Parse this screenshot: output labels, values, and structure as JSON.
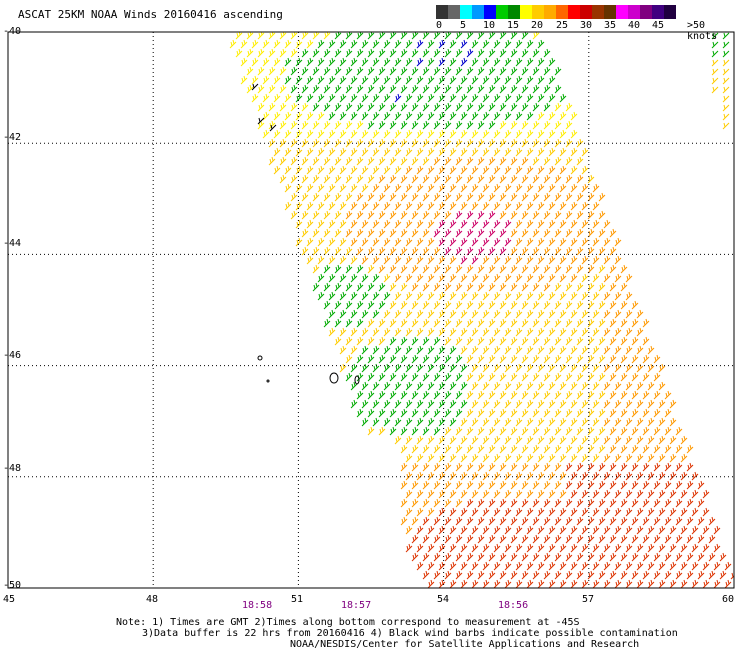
{
  "title": "ASCAT 25KM NOAA Winds 20160416 ascending",
  "legend": {
    "ticks": [
      "0",
      "5",
      "10",
      "15",
      "20",
      "25",
      "30",
      "35",
      "40",
      "45",
      ">50 knots"
    ],
    "colors": [
      "#333333",
      "#666666",
      "#00ffff",
      "#0099ff",
      "#0000ff",
      "#00cc00",
      "#008800",
      "#ffff00",
      "#ffcc00",
      "#ffaa00",
      "#ff6600",
      "#ff0000",
      "#cc0000",
      "#993300",
      "#663300",
      "#ff00ff",
      "#cc00cc",
      "#800080",
      "#400080",
      "#200040"
    ]
  },
  "latitude_labels": [
    "-40",
    "-42",
    "-44",
    "-46",
    "-48",
    "-50"
  ],
  "longitude_labels": [
    "45",
    "48",
    "51",
    "54",
    "57",
    "60"
  ],
  "times": [
    "18:58",
    "18:57",
    "18:56"
  ],
  "notes": {
    "line1": "Note: 1) Times are GMT 2)Times along bottom correspond to measurement at -45S",
    "line2": "3)Data buffer is 22 hrs from 20160416 4) Black wind barbs indicate possible contamination",
    "line3": "NOAA/NESDIS/Center for Satellite Applications and Research"
  },
  "map": {
    "lon_range": [
      45,
      60
    ],
    "lat_range": [
      -50,
      -40
    ],
    "grid": "dotted",
    "wind_colors": {
      "green": "#00aa00",
      "yellow": "#ffee00",
      "gold": "#ffcc00",
      "orange": "#ff9900",
      "red": "#dd3300",
      "blue": "#0000cc",
      "magenta": "#cc0066"
    }
  }
}
